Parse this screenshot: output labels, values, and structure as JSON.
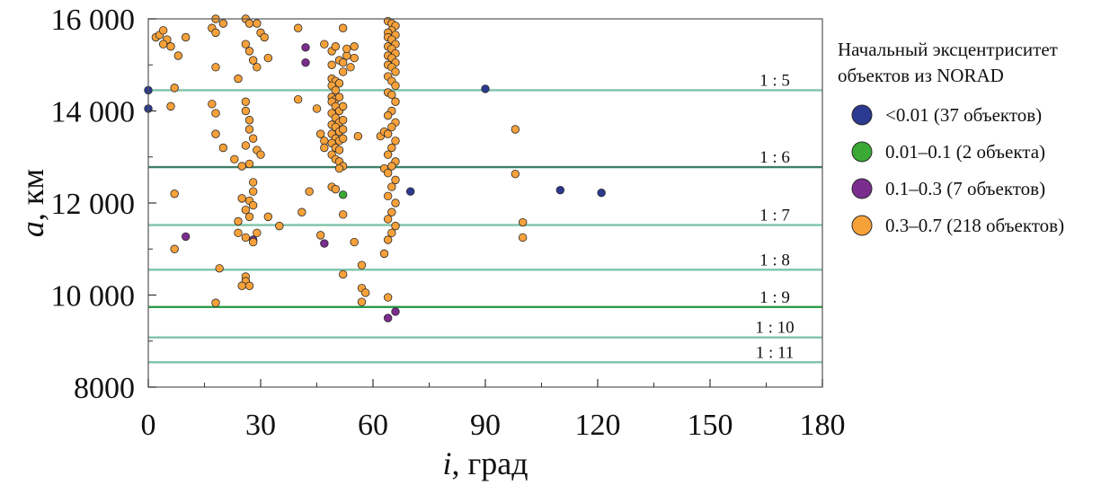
{
  "chart_data": {
    "type": "scatter",
    "title": "",
    "xlabel": {
      "symbol": "i",
      "rest": ", град"
    },
    "ylabel": {
      "symbol": "a",
      "rest": ", км"
    },
    "xlim": [
      0,
      180
    ],
    "ylim": [
      8000,
      16000
    ],
    "x_ticks": [
      0,
      30,
      60,
      90,
      120,
      150,
      180
    ],
    "x_tick_labels": [
      "0",
      "30",
      "60",
      "90",
      "120",
      "150",
      "180"
    ],
    "y_ticks": [
      8000,
      10000,
      12000,
      14000,
      16000
    ],
    "y_tick_labels": [
      "8000",
      "10 000",
      "12 000",
      "14 000",
      "16 000"
    ],
    "resonance_lines": [
      {
        "label": "1 : 5",
        "a": 14450,
        "color": "#7ec3a8"
      },
      {
        "label": "1 : 6",
        "a": 12780,
        "color": "#3f7f65"
      },
      {
        "label": "1 : 7",
        "a": 11520,
        "color": "#7ec3a8"
      },
      {
        "label": "1 : 8",
        "a": 10550,
        "color": "#7ec3a8"
      },
      {
        "label": "1 : 9",
        "a": 9740,
        "color": "#2e9a4a"
      },
      {
        "label": "1 : 10",
        "a": 9080,
        "color": "#7ec3a8"
      },
      {
        "label": "1 : 11",
        "a": 8540,
        "color": "#7ec3a8"
      }
    ],
    "legend": {
      "title_lines": [
        "Начальный эксцентриситет",
        "объектов из NORAD"
      ],
      "placement": "right"
    },
    "series": [
      {
        "name": "<0.01 (37 объектов)",
        "color": "#2b3990",
        "points": [
          [
            0,
            14450
          ],
          [
            0,
            14050
          ],
          [
            90,
            14480
          ],
          [
            70,
            12250
          ],
          [
            110,
            12280
          ],
          [
            121,
            12220
          ]
        ]
      },
      {
        "name": "0.01–0.1 (2 объекта)",
        "color": "#3aa935",
        "points": [
          [
            52,
            12180
          ]
        ]
      },
      {
        "name": "0.1–0.3 (7 объектов)",
        "color": "#7b2d8e",
        "points": [
          [
            42,
            15380
          ],
          [
            42,
            15050
          ],
          [
            10,
            11270
          ],
          [
            28,
            11200
          ],
          [
            47,
            11120
          ],
          [
            64,
            9500
          ],
          [
            66,
            9640
          ]
        ]
      },
      {
        "name": "0.3–0.7 (218 объектов)",
        "color": "#f7a13a",
        "points": [
          [
            2,
            15600
          ],
          [
            3,
            15650
          ],
          [
            4,
            15750
          ],
          [
            5,
            15550
          ],
          [
            6,
            15400
          ],
          [
            4,
            15450
          ],
          [
            8,
            15200
          ],
          [
            10,
            15600
          ],
          [
            6,
            14100
          ],
          [
            7,
            14500
          ],
          [
            7,
            12200
          ],
          [
            7,
            11000
          ],
          [
            18,
            16000
          ],
          [
            20,
            15900
          ],
          [
            17,
            15800
          ],
          [
            18,
            15700
          ],
          [
            18,
            14950
          ],
          [
            17,
            14150
          ],
          [
            18,
            13950
          ],
          [
            18,
            13500
          ],
          [
            20,
            13200
          ],
          [
            19,
            10580
          ],
          [
            18,
            9830
          ],
          [
            26,
            16000
          ],
          [
            27,
            15900
          ],
          [
            29,
            15900
          ],
          [
            26,
            15450
          ],
          [
            27,
            15300
          ],
          [
            28,
            15100
          ],
          [
            29,
            14950
          ],
          [
            30,
            15700
          ],
          [
            31,
            15600
          ],
          [
            32,
            15150
          ],
          [
            26,
            14200
          ],
          [
            24,
            14700
          ],
          [
            26,
            14000
          ],
          [
            27,
            13800
          ],
          [
            27,
            13600
          ],
          [
            28,
            13400
          ],
          [
            26,
            13250
          ],
          [
            29,
            13150
          ],
          [
            30,
            13050
          ],
          [
            23,
            12950
          ],
          [
            25,
            12800
          ],
          [
            27,
            12850
          ],
          [
            28,
            12450
          ],
          [
            28,
            12250
          ],
          [
            25,
            12100
          ],
          [
            27,
            12050
          ],
          [
            28,
            11950
          ],
          [
            26,
            11850
          ],
          [
            27,
            11700
          ],
          [
            24,
            11600
          ],
          [
            24,
            11350
          ],
          [
            26,
            11250
          ],
          [
            29,
            11350
          ],
          [
            28,
            11150
          ],
          [
            32,
            11700
          ],
          [
            35,
            11500
          ],
          [
            26,
            10400
          ],
          [
            26,
            10300
          ],
          [
            25,
            10200
          ],
          [
            27,
            10200
          ],
          [
            40,
            15800
          ],
          [
            40,
            14250
          ],
          [
            41,
            11800
          ],
          [
            43,
            12250
          ],
          [
            45,
            14050
          ],
          [
            46,
            13500
          ],
          [
            47,
            13350
          ],
          [
            47,
            13200
          ],
          [
            46,
            11300
          ],
          [
            47,
            15450
          ],
          [
            49,
            15300
          ],
          [
            50,
            15400
          ],
          [
            49,
            15000
          ],
          [
            51,
            15100
          ],
          [
            49,
            14700
          ],
          [
            50,
            14650
          ],
          [
            49,
            14550
          ],
          [
            51,
            14600
          ],
          [
            50,
            14450
          ],
          [
            49,
            14300
          ],
          [
            50,
            14250
          ],
          [
            49,
            14200
          ],
          [
            50,
            14100
          ],
          [
            51,
            14000
          ],
          [
            49,
            13950
          ],
          [
            50,
            13850
          ],
          [
            51,
            13750
          ],
          [
            49,
            13700
          ],
          [
            50,
            13650
          ],
          [
            51,
            13550
          ],
          [
            49,
            13500
          ],
          [
            50,
            13400
          ],
          [
            51,
            13350
          ],
          [
            49,
            13300
          ],
          [
            50,
            13200
          ],
          [
            51,
            13150
          ],
          [
            49,
            13050
          ],
          [
            50,
            12950
          ],
          [
            51,
            12900
          ],
          [
            52,
            12800
          ],
          [
            51,
            12750
          ],
          [
            49,
            12350
          ],
          [
            50,
            12300
          ],
          [
            51,
            14300
          ],
          [
            52,
            14100
          ],
          [
            52,
            13800
          ],
          [
            52,
            13600
          ],
          [
            52,
            13400
          ],
          [
            53,
            15200
          ],
          [
            53,
            15350
          ],
          [
            52,
            15800
          ],
          [
            52,
            15050
          ],
          [
            52,
            14850
          ],
          [
            52,
            11750
          ],
          [
            52,
            10450
          ],
          [
            54,
            14950
          ],
          [
            55,
            15150
          ],
          [
            55,
            15400
          ],
          [
            56,
            13450
          ],
          [
            55,
            11150
          ],
          [
            57,
            10650
          ],
          [
            57,
            10150
          ],
          [
            58,
            10050
          ],
          [
            57,
            9850
          ],
          [
            62,
            13450
          ],
          [
            63,
            13550
          ],
          [
            63,
            12750
          ],
          [
            63,
            10900
          ],
          [
            64,
            9950
          ],
          [
            64,
            15950
          ],
          [
            65,
            15900
          ],
          [
            66,
            15850
          ],
          [
            65,
            15750
          ],
          [
            64,
            15700
          ],
          [
            66,
            15650
          ],
          [
            64,
            15600
          ],
          [
            65,
            15550
          ],
          [
            66,
            15450
          ],
          [
            64,
            15400
          ],
          [
            65,
            15350
          ],
          [
            66,
            15250
          ],
          [
            64,
            15200
          ],
          [
            65,
            15150
          ],
          [
            66,
            15050
          ],
          [
            64,
            15000
          ],
          [
            65,
            14950
          ],
          [
            66,
            14850
          ],
          [
            64,
            14750
          ],
          [
            65,
            14650
          ],
          [
            66,
            14550
          ],
          [
            64,
            14400
          ],
          [
            65,
            14350
          ],
          [
            66,
            14200
          ],
          [
            65,
            14000
          ],
          [
            64,
            13900
          ],
          [
            66,
            13750
          ],
          [
            65,
            13650
          ],
          [
            64,
            13500
          ],
          [
            66,
            13350
          ],
          [
            65,
            13200
          ],
          [
            64,
            13050
          ],
          [
            66,
            12900
          ],
          [
            65,
            12800
          ],
          [
            64,
            12650
          ],
          [
            66,
            12500
          ],
          [
            65,
            12350
          ],
          [
            64,
            12150
          ],
          [
            66,
            12000
          ],
          [
            65,
            11800
          ],
          [
            64,
            11650
          ],
          [
            66,
            11500
          ],
          [
            65,
            11350
          ],
          [
            64,
            11200
          ],
          [
            98,
            13600
          ],
          [
            98,
            12630
          ],
          [
            100,
            11580
          ],
          [
            100,
            11250
          ]
        ]
      }
    ]
  }
}
